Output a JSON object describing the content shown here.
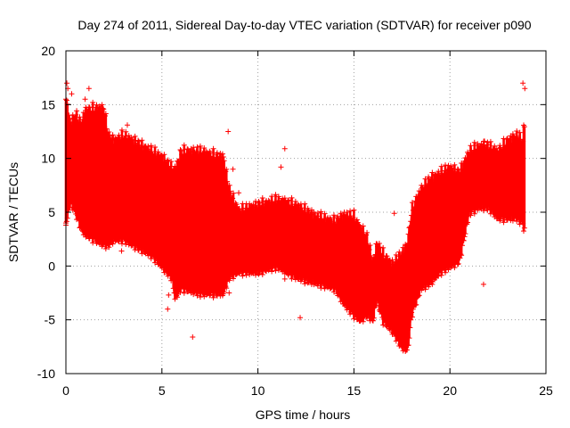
{
  "chart_data": {
    "type": "scatter",
    "title": "Day 274 of 2011, Sidereal Day-to-day VTEC variation (SDTVAR) for receiver p090",
    "xlabel": "GPS time / hours",
    "ylabel": "SDTVAR / TECUs",
    "xlim": [
      0,
      25
    ],
    "ylim": [
      -10,
      20
    ],
    "x_ticks": [
      "0",
      "5",
      "10",
      "15",
      "20",
      "25"
    ],
    "y_ticks": [
      "-10",
      "-5",
      "0",
      "5",
      "10",
      "15",
      "20"
    ],
    "grid": true,
    "marker": "+",
    "series_color": "#ff0000",
    "series": [
      {
        "name": "SDTVAR",
        "envelope_x": [
          0.0,
          0.25,
          0.5,
          0.8,
          1.0,
          1.5,
          2.0,
          2.2,
          2.5,
          3.0,
          3.5,
          4.0,
          4.5,
          5.0,
          5.5,
          5.7,
          6.0,
          7.0,
          8.0,
          8.2,
          8.5,
          9.0,
          10.0,
          11.0,
          12.0,
          13.0,
          14.0,
          14.5,
          15.0,
          15.3,
          15.7,
          16.0,
          16.2,
          16.5,
          17.0,
          17.5,
          17.8,
          18.0,
          18.5,
          19.0,
          19.5,
          20.0,
          20.5,
          21.0,
          21.5,
          22.0,
          22.5,
          23.0,
          23.5,
          23.8,
          23.9
        ],
        "envelope_max": [
          15.5,
          13.0,
          14.0,
          13.0,
          14.3,
          14.5,
          14.5,
          12.0,
          11.5,
          12.0,
          11.5,
          11.0,
          10.5,
          10.0,
          9.0,
          8.8,
          10.5,
          10.5,
          10.0,
          10.0,
          7.0,
          5.0,
          5.5,
          6.0,
          5.5,
          4.5,
          4.0,
          4.5,
          4.5,
          3.5,
          2.5,
          0.0,
          2.0,
          1.0,
          0.0,
          1.0,
          2.0,
          5.0,
          7.0,
          8.0,
          8.5,
          9.0,
          8.5,
          10.5,
          11.0,
          11.0,
          10.5,
          11.5,
          12.0,
          11.5,
          14.0
        ],
        "envelope_min": [
          4.0,
          6.0,
          5.0,
          3.5,
          3.0,
          2.5,
          2.0,
          2.0,
          2.5,
          2.5,
          2.0,
          1.5,
          1.0,
          0.0,
          -1.0,
          -3.0,
          -2.0,
          -2.5,
          -2.5,
          -2.5,
          -1.0,
          -0.5,
          -0.5,
          0.0,
          -1.0,
          -1.5,
          -2.0,
          -3.5,
          -4.5,
          -5.0,
          -4.5,
          -5.0,
          -3.0,
          -5.0,
          -6.0,
          -7.5,
          -7.8,
          -4.5,
          -2.0,
          -1.5,
          -0.5,
          0.0,
          0.5,
          5.0,
          5.5,
          5.5,
          4.5,
          4.5,
          4.5,
          4.0,
          3.0
        ],
        "outliers": [
          [
            0.05,
            17.0
          ],
          [
            0.1,
            16.5
          ],
          [
            0.0,
            3.8
          ],
          [
            0.3,
            16.0
          ],
          [
            1.0,
            15.5
          ],
          [
            1.2,
            16.5
          ],
          [
            3.2,
            13.1
          ],
          [
            2.9,
            1.4
          ],
          [
            4.3,
            9.0
          ],
          [
            5.3,
            -4.0
          ],
          [
            5.35,
            -2.7
          ],
          [
            6.6,
            -6.6
          ],
          [
            8.45,
            12.5
          ],
          [
            8.7,
            9.0
          ],
          [
            8.3,
            -1.0
          ],
          [
            8.5,
            -2.5
          ],
          [
            9.0,
            6.8
          ],
          [
            11.2,
            9.2
          ],
          [
            11.4,
            10.9
          ],
          [
            12.2,
            -4.8
          ],
          [
            11.4,
            -1.2
          ],
          [
            14.5,
            5.0
          ],
          [
            17.1,
            4.9
          ],
          [
            21.7,
            10.9
          ],
          [
            21.8,
            11.6
          ],
          [
            21.75,
            -1.7
          ],
          [
            22.8,
            11.0
          ],
          [
            23.8,
            17.0
          ],
          [
            23.9,
            16.5
          ]
        ]
      }
    ]
  }
}
